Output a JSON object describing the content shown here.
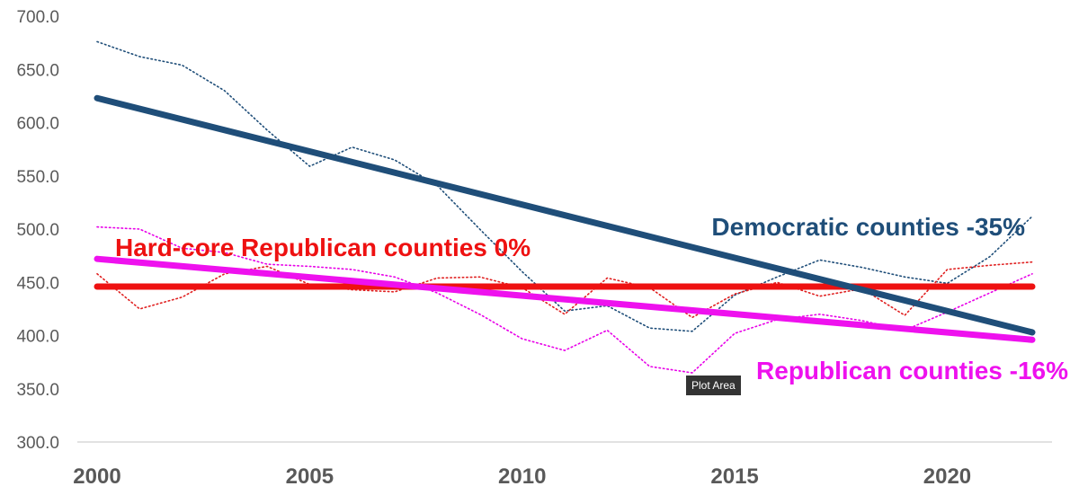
{
  "chart_data": {
    "type": "line",
    "x": [
      2000,
      2001,
      2002,
      2003,
      2004,
      2005,
      2006,
      2007,
      2008,
      2009,
      2010,
      2011,
      2012,
      2013,
      2014,
      2015,
      2016,
      2017,
      2018,
      2019,
      2020,
      2021,
      2022
    ],
    "xticks": [
      "2000",
      "2005",
      "2010",
      "2015",
      "2020"
    ],
    "yticks": [
      "300.0",
      "350.0",
      "400.0",
      "450.0",
      "500.0",
      "550.0",
      "600.0",
      "650.0",
      "700.0"
    ],
    "ylim": [
      300,
      700
    ],
    "xlim": [
      2000,
      2022
    ],
    "grid": false,
    "series": [
      {
        "key": "dem",
        "style": "dotted",
        "color": "#1f4e79",
        "values": [
          676,
          662,
          654,
          630,
          593,
          559,
          577,
          565,
          541,
          500,
          460,
          423,
          428,
          407,
          404,
          438,
          455,
          471,
          464,
          455,
          449,
          474,
          512
        ]
      },
      {
        "key": "hcrep",
        "style": "dotted",
        "color": "#e02020",
        "values": [
          458,
          425,
          436,
          458,
          465,
          448,
          443,
          441,
          454,
          455,
          445,
          420,
          454,
          445,
          417,
          439,
          450,
          437,
          444,
          419,
          462,
          466,
          469
        ]
      },
      {
        "key": "rep",
        "style": "dotted",
        "color": "#e800e8",
        "values": [
          502,
          500,
          482,
          478,
          467,
          465,
          462,
          455,
          440,
          420,
          397,
          386,
          405,
          371,
          365,
          402,
          415,
          420,
          414,
          405,
          422,
          440,
          458
        ]
      },
      {
        "key": "hcrep_trend",
        "style": "solid",
        "color": "#ee1111",
        "width": 7,
        "values_endpoints": [
          446,
          446
        ]
      },
      {
        "key": "rep_trend",
        "style": "solid",
        "color": "#ee11ee",
        "width": 7,
        "values_endpoints": [
          472,
          396
        ]
      },
      {
        "key": "dem_trend",
        "style": "solid",
        "color": "#1f4e79",
        "width": 7,
        "values_endpoints": [
          623,
          403
        ]
      }
    ],
    "annotations": [
      {
        "key": "dem",
        "text": "Democratic counties -35%",
        "color": "#1f4e79"
      },
      {
        "key": "hcrep",
        "text": "Hard-core Republican counties  0%",
        "color": "#ee1111"
      },
      {
        "key": "rep",
        "text": "Republican counties -16%",
        "color": "#ee11ee"
      }
    ]
  },
  "tooltip": {
    "text": "Plot Area"
  }
}
